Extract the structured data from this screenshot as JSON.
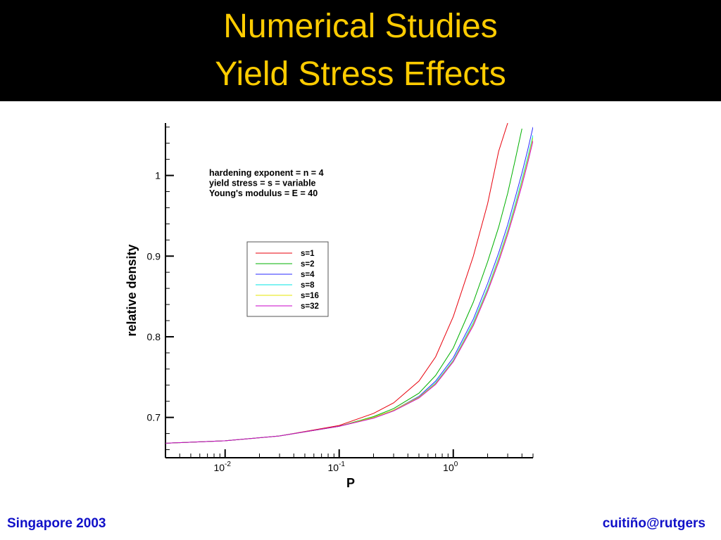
{
  "slide": {
    "title_line_1": "Numerical Studies",
    "title_line_2": "Yield Stress Effects",
    "footer_left": "Singapore 2003",
    "footer_right": "cuitiño@rutgers"
  },
  "colors": {
    "title_bar": "#000000",
    "title_text": "#ffcc00",
    "footer_text": "#1010c8",
    "axis": "#000000"
  },
  "chart_data": {
    "type": "line",
    "xlabel": "P",
    "ylabel": "relative density",
    "x_scale": "log",
    "xlim": [
      0.003,
      5.0
    ],
    "ylim": [
      0.65,
      1.065
    ],
    "x_ticks": [
      {
        "value": 0.01,
        "base": "10",
        "exp": "-2"
      },
      {
        "value": 0.1,
        "base": "10",
        "exp": "-1"
      },
      {
        "value": 1,
        "base": "10",
        "exp": "0"
      }
    ],
    "y_ticks": [
      {
        "value": 0.7,
        "label": "0.7"
      },
      {
        "value": 0.8,
        "label": "0.8"
      },
      {
        "value": 0.9,
        "label": "0.9"
      },
      {
        "value": 1.0,
        "label": "1"
      }
    ],
    "annotation": [
      "hardening exponent = n = 4",
      "yield stress = s = variable",
      "Young's modulus = E = 40"
    ],
    "grid": false,
    "legend_position": "upper-center",
    "x": [
      0.003,
      0.01,
      0.03,
      0.1,
      0.2,
      0.3,
      0.5,
      0.7,
      1.0,
      1.5,
      2.0,
      2.5,
      3.0,
      3.5,
      4.0,
      4.5,
      5.0
    ],
    "series": [
      {
        "name": "s=1",
        "color": "#e8000b",
        "values": [
          0.668,
          0.671,
          0.677,
          0.69,
          0.705,
          0.718,
          0.745,
          0.775,
          0.825,
          0.9,
          0.965,
          1.03,
          1.065,
          null,
          null,
          null,
          null
        ]
      },
      {
        "name": "s=2",
        "color": "#00b000",
        "values": [
          0.668,
          0.671,
          0.677,
          0.689,
          0.701,
          0.711,
          0.73,
          0.752,
          0.786,
          0.843,
          0.893,
          0.936,
          0.978,
          1.02,
          1.058,
          null,
          null
        ]
      },
      {
        "name": "s=4",
        "color": "#2b2bff",
        "values": [
          0.668,
          0.671,
          0.677,
          0.689,
          0.7,
          0.709,
          0.726,
          0.745,
          0.774,
          0.822,
          0.866,
          0.904,
          0.939,
          0.973,
          1.003,
          1.032,
          1.06
        ]
      },
      {
        "name": "s=8",
        "color": "#00e5e5",
        "values": [
          0.668,
          0.671,
          0.677,
          0.689,
          0.7,
          0.709,
          0.725,
          0.743,
          0.771,
          0.818,
          0.86,
          0.898,
          0.932,
          0.965,
          0.995,
          1.023,
          1.05
        ]
      },
      {
        "name": "s=16",
        "color": "#e5e500",
        "values": [
          0.668,
          0.671,
          0.677,
          0.689,
          0.7,
          0.709,
          0.725,
          0.742,
          0.77,
          0.816,
          0.858,
          0.896,
          0.93,
          0.962,
          0.992,
          1.02,
          1.047
        ]
      },
      {
        "name": "s=32",
        "color": "#c800c8",
        "values": [
          0.668,
          0.671,
          0.677,
          0.689,
          0.699,
          0.708,
          0.724,
          0.741,
          0.769,
          0.814,
          0.856,
          0.893,
          0.927,
          0.959,
          0.988,
          1.016,
          1.043
        ]
      }
    ]
  }
}
